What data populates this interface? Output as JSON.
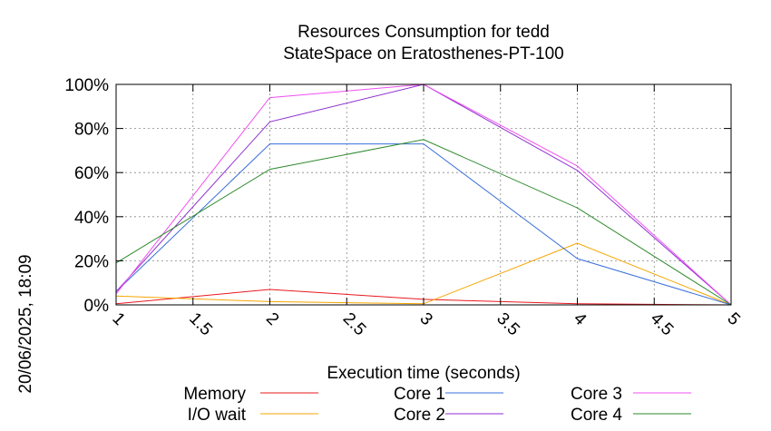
{
  "chart_data": {
    "type": "line",
    "title": "Resources Consumption for tedd",
    "subtitle": "StateSpace on Eratosthenes-PT-100",
    "xlabel": "Execution time (seconds)",
    "ylabel": "",
    "side_label": "20/06/2025, 18:09",
    "xlim": [
      1,
      5
    ],
    "ylim": [
      0,
      100
    ],
    "x_ticks": [
      1,
      1.5,
      2,
      2.5,
      3,
      3.5,
      4,
      4.5,
      5
    ],
    "x_tick_labels": [
      "1",
      "1.5",
      "2",
      "2.5",
      "3",
      "3.5",
      "4",
      "4.5",
      "5"
    ],
    "y_ticks": [
      0,
      20,
      40,
      60,
      80,
      100
    ],
    "y_tick_labels": [
      "0%",
      "20%",
      "40%",
      "60%",
      "80%",
      "100%"
    ],
    "grid": true,
    "legend_position": "bottom",
    "x": [
      1,
      2,
      3,
      4,
      5
    ],
    "series": [
      {
        "name": "Memory",
        "color": "#e8191e",
        "values": [
          0.5,
          7,
          2.5,
          0.5,
          0
        ]
      },
      {
        "name": "I/O wait",
        "color": "#f5a500",
        "values": [
          4,
          1.5,
          0.5,
          28,
          0
        ]
      },
      {
        "name": "Core 1",
        "color": "#3a6fd8",
        "values": [
          6,
          73,
          73,
          21,
          0
        ]
      },
      {
        "name": "Core 2",
        "color": "#8f2fd0",
        "values": [
          6,
          83,
          100,
          61,
          0
        ]
      },
      {
        "name": "Core 3",
        "color": "#f050f0",
        "values": [
          5,
          94,
          100,
          63,
          0
        ]
      },
      {
        "name": "Core 4",
        "color": "#2e8a2e",
        "values": [
          19,
          61.5,
          75,
          44,
          0
        ]
      }
    ]
  }
}
